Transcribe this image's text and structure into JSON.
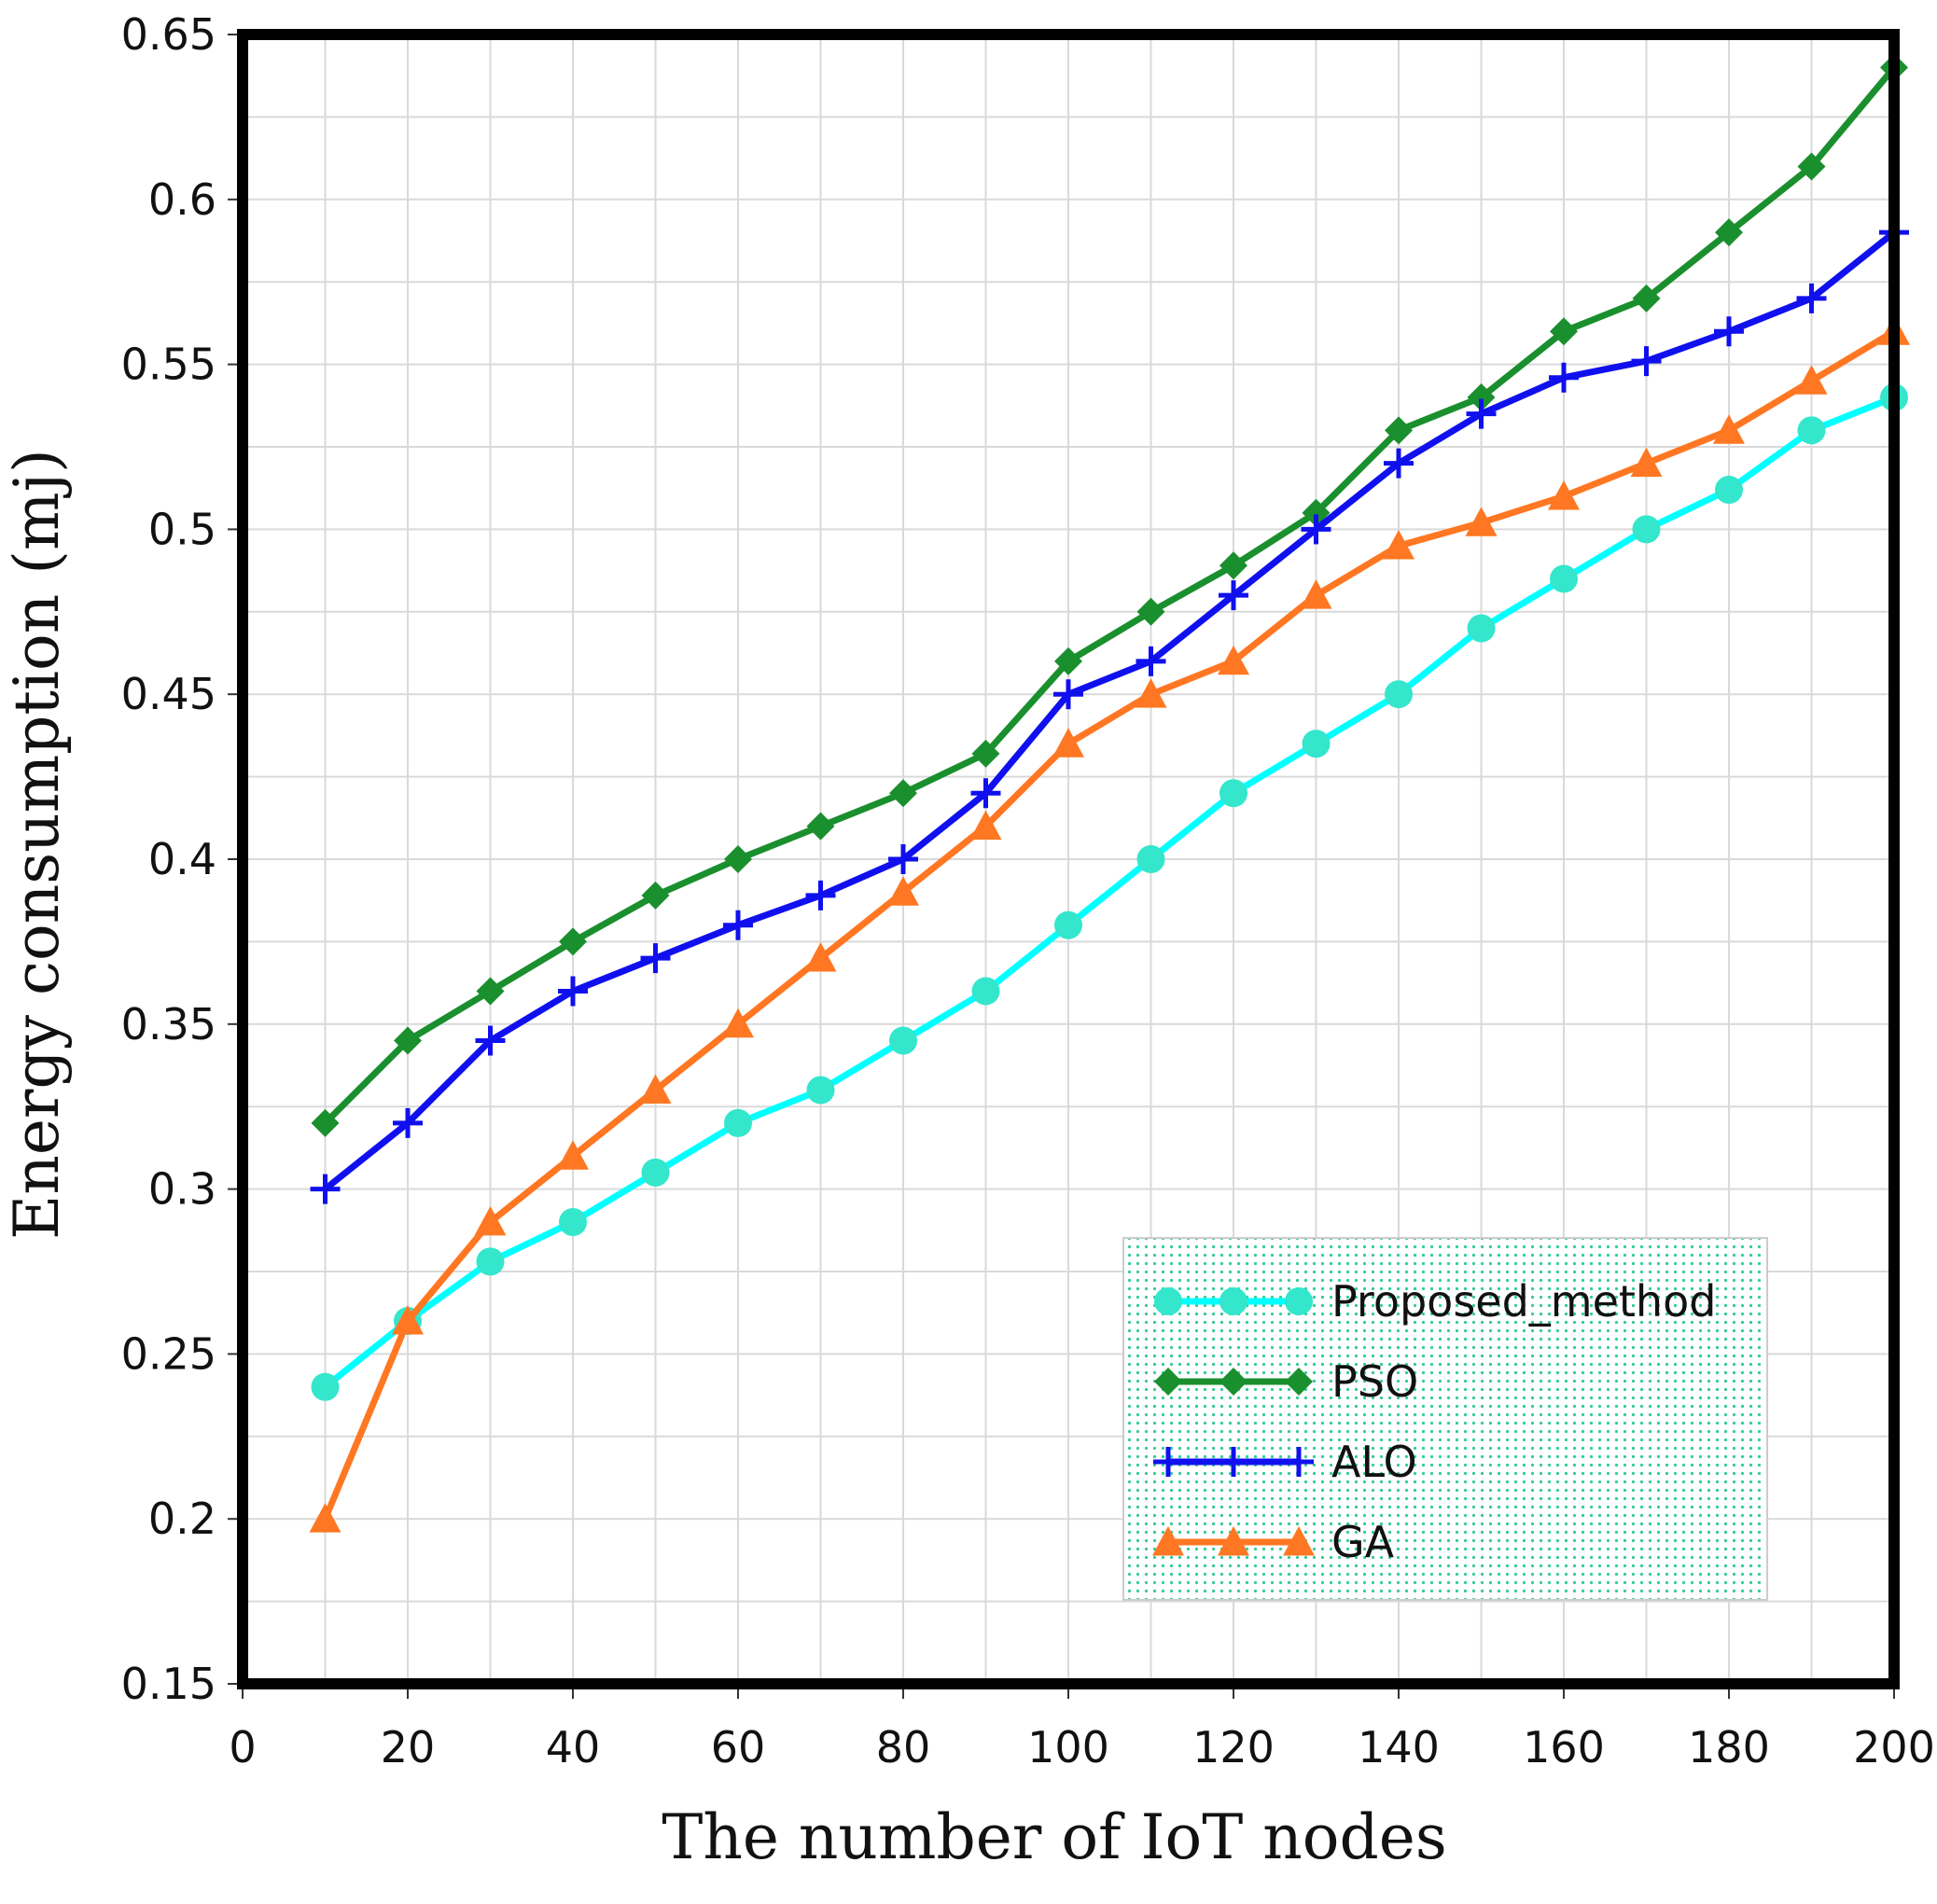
{
  "chart_data": {
    "type": "line",
    "title": "",
    "xlabel": "The number of IoT nodes",
    "ylabel": "Energy consumption (mj)",
    "xlim": [
      0,
      200
    ],
    "ylim": [
      0.15,
      0.65
    ],
    "x_ticks": [
      0,
      20,
      40,
      60,
      80,
      100,
      120,
      140,
      160,
      180,
      200
    ],
    "y_ticks": [
      0.15,
      0.2,
      0.25,
      0.3,
      0.35,
      0.4,
      0.45,
      0.5,
      0.55,
      0.6,
      0.65
    ],
    "x_tick_labels": [
      "0",
      "20",
      "40",
      "60",
      "80",
      "100",
      "120",
      "140",
      "160",
      "180",
      "200"
    ],
    "y_tick_labels": [
      "0.15",
      "0.2",
      "0.25",
      "0.3",
      "0.35",
      "0.4",
      "0.45",
      "0.5",
      "0.55",
      "0.6",
      "0.65"
    ],
    "grid": true,
    "legend_position": "bottom-right",
    "x": [
      10,
      20,
      30,
      40,
      50,
      60,
      70,
      80,
      90,
      100,
      110,
      120,
      130,
      140,
      150,
      160,
      170,
      180,
      190,
      200
    ],
    "series": [
      {
        "name": "Proposed_method",
        "color": "#00ffff",
        "marker_color": "#33e6cc",
        "marker": "circle",
        "values": [
          0.24,
          0.26,
          0.278,
          0.29,
          0.305,
          0.32,
          0.33,
          0.345,
          0.36,
          0.38,
          0.4,
          0.42,
          0.435,
          0.45,
          0.47,
          0.485,
          0.5,
          0.512,
          0.53,
          0.54
        ]
      },
      {
        "name": "PSO",
        "color": "#1a8f2e",
        "marker_color": "#1a8f2e",
        "marker": "diamond",
        "values": [
          0.32,
          0.345,
          0.36,
          0.375,
          0.389,
          0.4,
          0.41,
          0.42,
          0.432,
          0.46,
          0.475,
          0.489,
          0.505,
          0.53,
          0.54,
          0.56,
          0.57,
          0.59,
          0.61,
          0.64
        ]
      },
      {
        "name": "ALO",
        "color": "#1010ee",
        "marker_color": "#1010ee",
        "marker": "plus",
        "values": [
          0.3,
          0.32,
          0.345,
          0.36,
          0.37,
          0.38,
          0.389,
          0.4,
          0.42,
          0.45,
          0.46,
          0.48,
          0.5,
          0.52,
          0.535,
          0.546,
          0.551,
          0.56,
          0.57,
          0.59
        ]
      },
      {
        "name": "GA",
        "color": "#ff7722",
        "marker_color": "#ff7722",
        "marker": "triangle",
        "values": [
          0.2,
          0.26,
          0.29,
          0.31,
          0.33,
          0.35,
          0.37,
          0.39,
          0.41,
          0.435,
          0.45,
          0.46,
          0.48,
          0.495,
          0.502,
          0.51,
          0.52,
          0.53,
          0.545,
          0.56
        ]
      }
    ]
  },
  "colors": {
    "frame": "#000000",
    "grid": "#d9d9d9",
    "legend_bg": "#ffffff",
    "legend_dots": "#33cc99"
  }
}
